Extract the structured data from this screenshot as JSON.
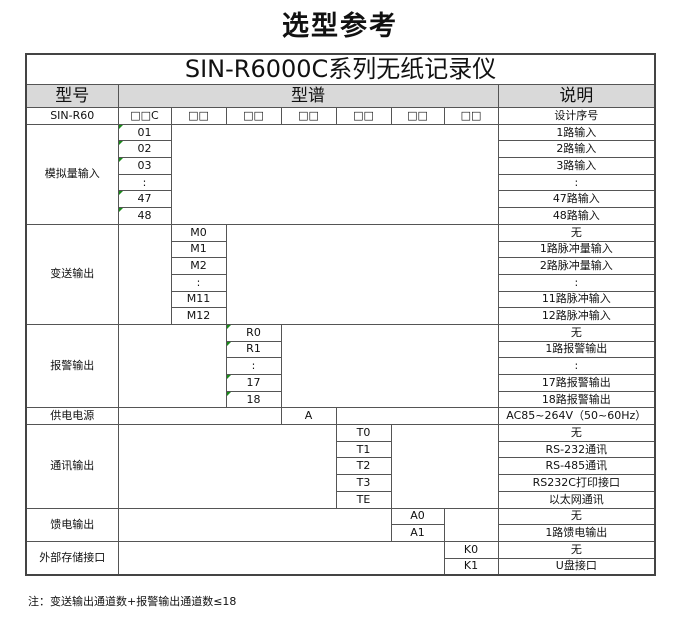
{
  "title": "选型参考",
  "table_title": "SIN-R6000C系列无纸记录仪",
  "headers": {
    "model": "型号",
    "spectrum": "型谱",
    "description": "说明"
  },
  "model_row": {
    "model": "SIN-R60",
    "codes": [
      "□□C",
      "□□",
      "□□",
      "□□",
      "□□",
      "□□",
      "□□"
    ],
    "description": "设计序号"
  },
  "sections": [
    {
      "label": "模拟量输入",
      "col": 1,
      "mark": true,
      "rows": [
        [
          "01",
          "1路输入"
        ],
        [
          "02",
          "2路输入"
        ],
        [
          "03",
          "3路输入"
        ],
        [
          ":",
          ":"
        ],
        [
          "47",
          "47路输入"
        ],
        [
          "48",
          "48路输入"
        ]
      ]
    },
    {
      "label": "变送输出",
      "col": 2,
      "mark": false,
      "rows": [
        [
          "M0",
          "无"
        ],
        [
          "M1",
          "1路脉冲量输入"
        ],
        [
          "M2",
          "2路脉冲量输入"
        ],
        [
          ":",
          ":"
        ],
        [
          "M11",
          "11路脉冲输入"
        ],
        [
          "M12",
          "12路脉冲输入"
        ]
      ]
    },
    {
      "label": "报警输出",
      "col": 3,
      "mark": true,
      "rows": [
        [
          "R0",
          "无"
        ],
        [
          "R1",
          "1路报警输出"
        ],
        [
          ":",
          ":"
        ],
        [
          "17",
          "17路报警输出"
        ],
        [
          "18",
          "18路报警输出"
        ]
      ]
    },
    {
      "label": "供电电源",
      "col": 4,
      "mark": false,
      "rows": [
        [
          "A",
          "AC85~264V（50~60Hz）"
        ]
      ]
    },
    {
      "label": "通讯输出",
      "col": 5,
      "mark": false,
      "rows": [
        [
          "T0",
          "无"
        ],
        [
          "T1",
          "RS-232通讯"
        ],
        [
          "T2",
          "RS-485通讯"
        ],
        [
          "T3",
          "RS232C打印接口"
        ],
        [
          "TE",
          "以太网通讯"
        ]
      ]
    },
    {
      "label": "馈电输出",
      "col": 6,
      "mark": false,
      "rows": [
        [
          "A0",
          "无"
        ],
        [
          "A1",
          "1路馈电输出"
        ]
      ]
    },
    {
      "label": "外部存储接口",
      "col": 7,
      "mark": false,
      "rows": [
        [
          "K0",
          "无"
        ],
        [
          "K1",
          "U盘接口"
        ]
      ]
    }
  ],
  "note": "注：变送输出通道数+报警输出通道数≤18"
}
